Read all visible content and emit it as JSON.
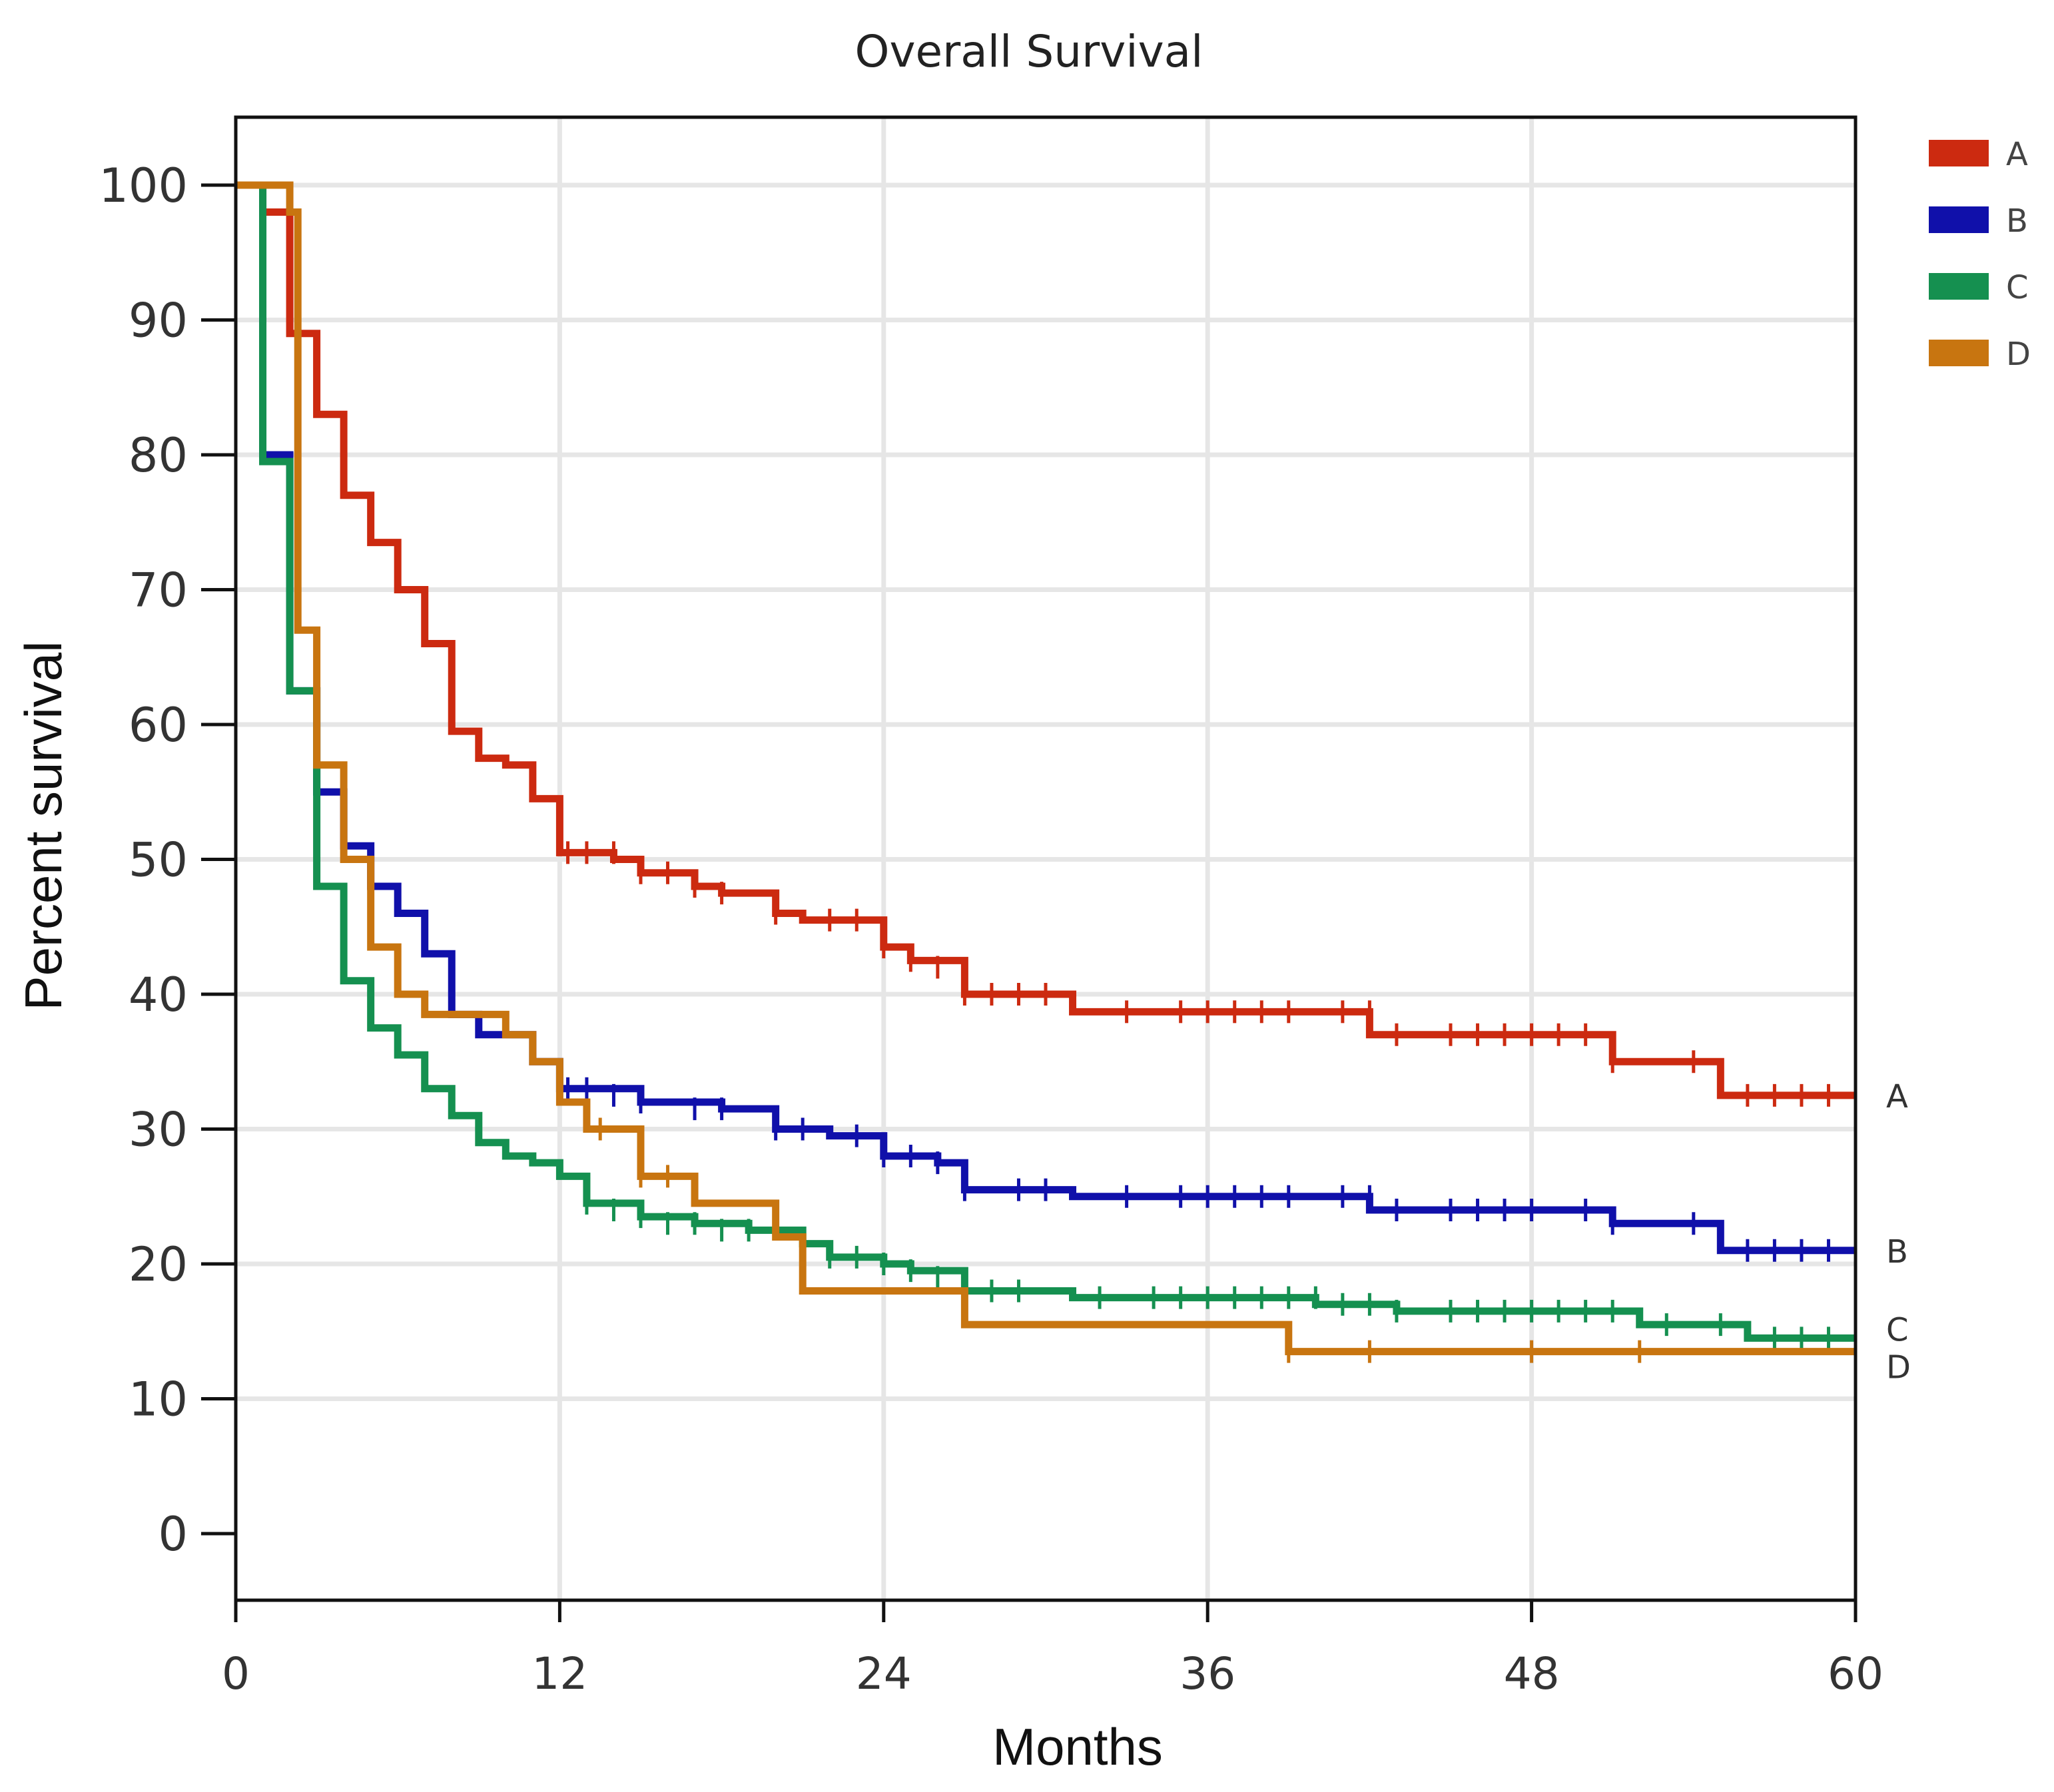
{
  "chart_data": {
    "type": "line",
    "subtype": "kaplan-meier step",
    "title": "Overall Survival",
    "xlabel": "Months",
    "ylabel": "Percent survival",
    "xlim": [
      0,
      60
    ],
    "ylim": [
      -5,
      105
    ],
    "x_ticks": [
      0,
      12,
      24,
      36,
      48,
      60
    ],
    "y_ticks": [
      0,
      10,
      20,
      30,
      40,
      50,
      60,
      70,
      80,
      90,
      100
    ],
    "grid": true,
    "legend_position": "top-right outside",
    "series": [
      {
        "name": "A",
        "color": "#cc2a10",
        "end_label": "A",
        "steps": [
          [
            0,
            100
          ],
          [
            1,
            98
          ],
          [
            2,
            89
          ],
          [
            3,
            83
          ],
          [
            4,
            77
          ],
          [
            5,
            73.5
          ],
          [
            6,
            70
          ],
          [
            7,
            66
          ],
          [
            8,
            59.5
          ],
          [
            9,
            57.5
          ],
          [
            10,
            57
          ],
          [
            11,
            54.5
          ],
          [
            12,
            50.5
          ],
          [
            14,
            50
          ],
          [
            15,
            49
          ],
          [
            17,
            48
          ],
          [
            18,
            47.5
          ],
          [
            20,
            46
          ],
          [
            21,
            45.5
          ],
          [
            24,
            43.5
          ],
          [
            25,
            42.5
          ],
          [
            27,
            40
          ],
          [
            31,
            38.7
          ],
          [
            42,
            37
          ],
          [
            51,
            35
          ],
          [
            55,
            32.5
          ],
          [
            60,
            32.5
          ]
        ],
        "censored": [
          [
            12.3,
            50.5
          ],
          [
            13,
            50.5
          ],
          [
            14,
            50.5
          ],
          [
            15,
            49
          ],
          [
            16,
            49
          ],
          [
            17,
            48
          ],
          [
            18,
            47.5
          ],
          [
            20,
            46
          ],
          [
            22,
            45.5
          ],
          [
            23,
            45.5
          ],
          [
            24,
            43.5
          ],
          [
            25,
            42.5
          ],
          [
            26,
            42
          ],
          [
            27,
            40
          ],
          [
            28,
            40
          ],
          [
            29,
            40
          ],
          [
            30,
            40
          ],
          [
            33,
            38.7
          ],
          [
            35,
            38.7
          ],
          [
            36,
            38.7
          ],
          [
            37,
            38.7
          ],
          [
            38,
            38.7
          ],
          [
            39,
            38.7
          ],
          [
            41,
            38.7
          ],
          [
            42,
            38.7
          ],
          [
            43,
            37
          ],
          [
            45,
            37
          ],
          [
            46,
            37
          ],
          [
            47,
            37
          ],
          [
            48,
            37
          ],
          [
            49,
            37
          ],
          [
            50,
            37
          ],
          [
            51,
            35
          ],
          [
            54,
            35
          ],
          [
            56,
            32.5
          ],
          [
            57,
            32.5
          ],
          [
            58,
            32.5
          ],
          [
            59,
            32.5
          ],
          [
            60,
            32.5
          ]
        ]
      },
      {
        "name": "B",
        "color": "#1010aa",
        "end_label": "B",
        "steps": [
          [
            0,
            100
          ],
          [
            1,
            80
          ],
          [
            2,
            62.5
          ],
          [
            3,
            55
          ],
          [
            4,
            51
          ],
          [
            5,
            48
          ],
          [
            6,
            46
          ],
          [
            7,
            43
          ],
          [
            8,
            38.5
          ],
          [
            9,
            37
          ],
          [
            10,
            37
          ],
          [
            11,
            35
          ],
          [
            12,
            33
          ],
          [
            15,
            32
          ],
          [
            18,
            31.5
          ],
          [
            20,
            30
          ],
          [
            22,
            29.5
          ],
          [
            24,
            28
          ],
          [
            26,
            27.5
          ],
          [
            27,
            25.5
          ],
          [
            31,
            25
          ],
          [
            42,
            24
          ],
          [
            51,
            23
          ],
          [
            55,
            21
          ],
          [
            60,
            21
          ]
        ],
        "censored": [
          [
            12.3,
            33
          ],
          [
            13,
            33
          ],
          [
            14,
            32.5
          ],
          [
            15,
            32
          ],
          [
            17,
            31.5
          ],
          [
            18,
            31.5
          ],
          [
            20,
            30
          ],
          [
            21,
            30
          ],
          [
            23,
            29.5
          ],
          [
            24,
            28
          ],
          [
            25,
            28
          ],
          [
            26,
            27.5
          ],
          [
            27,
            25.5
          ],
          [
            29,
            25.5
          ],
          [
            30,
            25.5
          ],
          [
            33,
            25
          ],
          [
            35,
            25
          ],
          [
            36,
            25
          ],
          [
            37,
            25
          ],
          [
            38,
            25
          ],
          [
            39,
            25
          ],
          [
            41,
            25
          ],
          [
            42,
            25
          ],
          [
            43,
            24
          ],
          [
            45,
            24
          ],
          [
            46,
            24
          ],
          [
            47,
            24
          ],
          [
            48,
            24
          ],
          [
            50,
            24
          ],
          [
            51,
            23
          ],
          [
            54,
            23
          ],
          [
            56,
            21
          ],
          [
            57,
            21
          ],
          [
            58,
            21
          ],
          [
            59,
            21
          ],
          [
            60,
            21
          ]
        ]
      },
      {
        "name": "C",
        "color": "#159050",
        "end_label": "C",
        "steps": [
          [
            0,
            100
          ],
          [
            1,
            79.5
          ],
          [
            2,
            62.5
          ],
          [
            3,
            48
          ],
          [
            4,
            41
          ],
          [
            5,
            37.5
          ],
          [
            6,
            35.5
          ],
          [
            7,
            33
          ],
          [
            8,
            31
          ],
          [
            9,
            29
          ],
          [
            10,
            28
          ],
          [
            11,
            27.5
          ],
          [
            12,
            26.5
          ],
          [
            13,
            24.5
          ],
          [
            15,
            23.5
          ],
          [
            17,
            23
          ],
          [
            19,
            22.5
          ],
          [
            21,
            21.5
          ],
          [
            22,
            20.5
          ],
          [
            24,
            20
          ],
          [
            25,
            19.5
          ],
          [
            27,
            18
          ],
          [
            31,
            17.5
          ],
          [
            40,
            17
          ],
          [
            43,
            16.5
          ],
          [
            52,
            15.5
          ],
          [
            56,
            14.5
          ],
          [
            60,
            14.5
          ]
        ],
        "censored": [
          [
            13,
            24.5
          ],
          [
            14,
            24
          ],
          [
            15,
            23.5
          ],
          [
            16,
            23
          ],
          [
            17,
            23
          ],
          [
            18,
            22.5
          ],
          [
            19,
            22.5
          ],
          [
            22,
            20.5
          ],
          [
            23,
            20.5
          ],
          [
            24,
            20
          ],
          [
            25,
            19.5
          ],
          [
            26,
            19
          ],
          [
            27,
            18
          ],
          [
            28,
            18
          ],
          [
            29,
            18
          ],
          [
            32,
            17.5
          ],
          [
            34,
            17.5
          ],
          [
            35,
            17.5
          ],
          [
            36,
            17.5
          ],
          [
            37,
            17.5
          ],
          [
            38,
            17.5
          ],
          [
            39,
            17.5
          ],
          [
            40,
            17.5
          ],
          [
            41,
            17
          ],
          [
            42,
            17
          ],
          [
            43,
            16.5
          ],
          [
            45,
            16.5
          ],
          [
            46,
            16.5
          ],
          [
            47,
            16.5
          ],
          [
            48,
            16.5
          ],
          [
            49,
            16.5
          ],
          [
            50,
            16.5
          ],
          [
            51,
            16.5
          ],
          [
            53,
            15.5
          ],
          [
            55,
            15.5
          ],
          [
            57,
            14.5
          ],
          [
            58,
            14.5
          ],
          [
            59,
            14.5
          ],
          [
            60,
            14.5
          ]
        ]
      },
      {
        "name": "D",
        "color": "#c87510",
        "end_label": "D",
        "steps": [
          [
            0,
            100
          ],
          [
            2,
            98
          ],
          [
            2.3,
            67
          ],
          [
            3,
            57
          ],
          [
            4,
            50
          ],
          [
            5,
            43.5
          ],
          [
            6,
            40
          ],
          [
            7,
            38.5
          ],
          [
            10,
            37
          ],
          [
            11,
            35
          ],
          [
            12,
            32
          ],
          [
            13,
            30
          ],
          [
            15,
            26.5
          ],
          [
            17,
            24.5
          ],
          [
            20,
            22
          ],
          [
            21,
            18
          ],
          [
            27,
            15.5
          ],
          [
            39,
            13.5
          ],
          [
            60,
            13.5
          ]
        ],
        "censored": [
          [
            13.5,
            30
          ],
          [
            15,
            26.5
          ],
          [
            16,
            26.5
          ],
          [
            39,
            13.5
          ],
          [
            42,
            13.5
          ],
          [
            48,
            13.5
          ],
          [
            52,
            13.5
          ],
          [
            60,
            13.5
          ]
        ]
      }
    ]
  }
}
